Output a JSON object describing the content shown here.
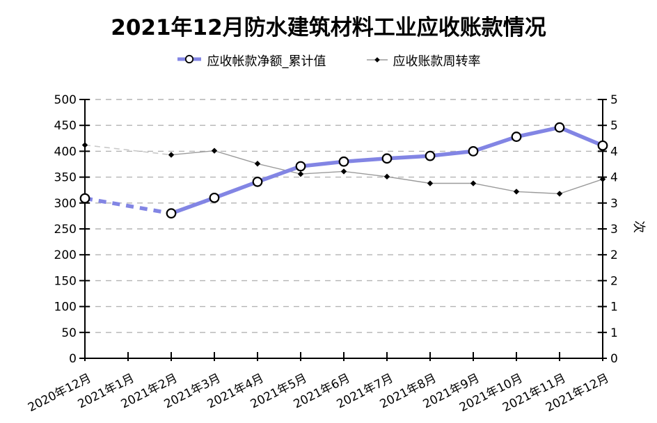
{
  "title": "2021年12月防水建筑材料工业应收账款情况",
  "legend": {
    "items": [
      {
        "label": "应收帐款净额_累计值",
        "marker": "circle-on-thick-line",
        "color": "#8285e4"
      },
      {
        "label": "应收账款周转率",
        "marker": "diamond-on-thin-line",
        "color": "#9a9a9a"
      }
    ]
  },
  "colors": {
    "net_receivable_line": "#8285e4",
    "turnover_line": "#9a9a9a",
    "turnover_missing_dash": "#c9c9c9",
    "gridline": "#b3b3b3",
    "axis": "#000000",
    "marker_fill": "#ffffff",
    "marker_stroke": "#000000"
  },
  "chart_data": {
    "type": "line",
    "title": "2021年12月防水建筑材料工业应收账款情况",
    "categories": [
      "2020年12月",
      "2021年1月",
      "2021年2月",
      "2021年3月",
      "2021年4月",
      "2021年5月",
      "2021年6月",
      "2021年7月",
      "2021年8月",
      "2021年9月",
      "2021年10月",
      "2021年11月",
      "2021年12月"
    ],
    "series": [
      {
        "name": "应收帐款净额_累计值",
        "axis": "left",
        "style": "thick line, white circle markers, dashed between 2020年12月 and 2021年2月 (no 2021年1月 data)",
        "values": [
          309,
          null,
          280,
          310,
          341,
          371,
          380,
          386,
          391,
          400,
          428,
          446,
          411
        ]
      },
      {
        "name": "应收账款周转率",
        "axis": "right",
        "style": "thin gray line, small black diamond markers, light dashed between 2020年12月 and 2021年2月 (no 2021年1月 data)",
        "values": [
          4.12,
          null,
          3.93,
          4.01,
          3.76,
          3.56,
          3.61,
          3.51,
          3.38,
          3.38,
          3.22,
          3.18,
          3.46
        ]
      }
    ],
    "left_axis": {
      "min": 0,
      "max": 500,
      "step": 50,
      "tick_labels": [
        "0",
        "50",
        "100",
        "150",
        "200",
        "250",
        "300",
        "350",
        "400",
        "450",
        "500"
      ]
    },
    "right_axis": {
      "min": 0,
      "max": 5,
      "step": 0.5,
      "unit": "次",
      "tick_labels_bottom_to_top": [
        "0",
        "1",
        "1",
        "2",
        "2",
        "3",
        "3",
        "4",
        "4",
        "5",
        "5"
      ]
    },
    "grid": "horizontal dashed at every 50 left-axis units",
    "legend_position": "top-center",
    "x_tick_label_rotation_deg": -27
  }
}
